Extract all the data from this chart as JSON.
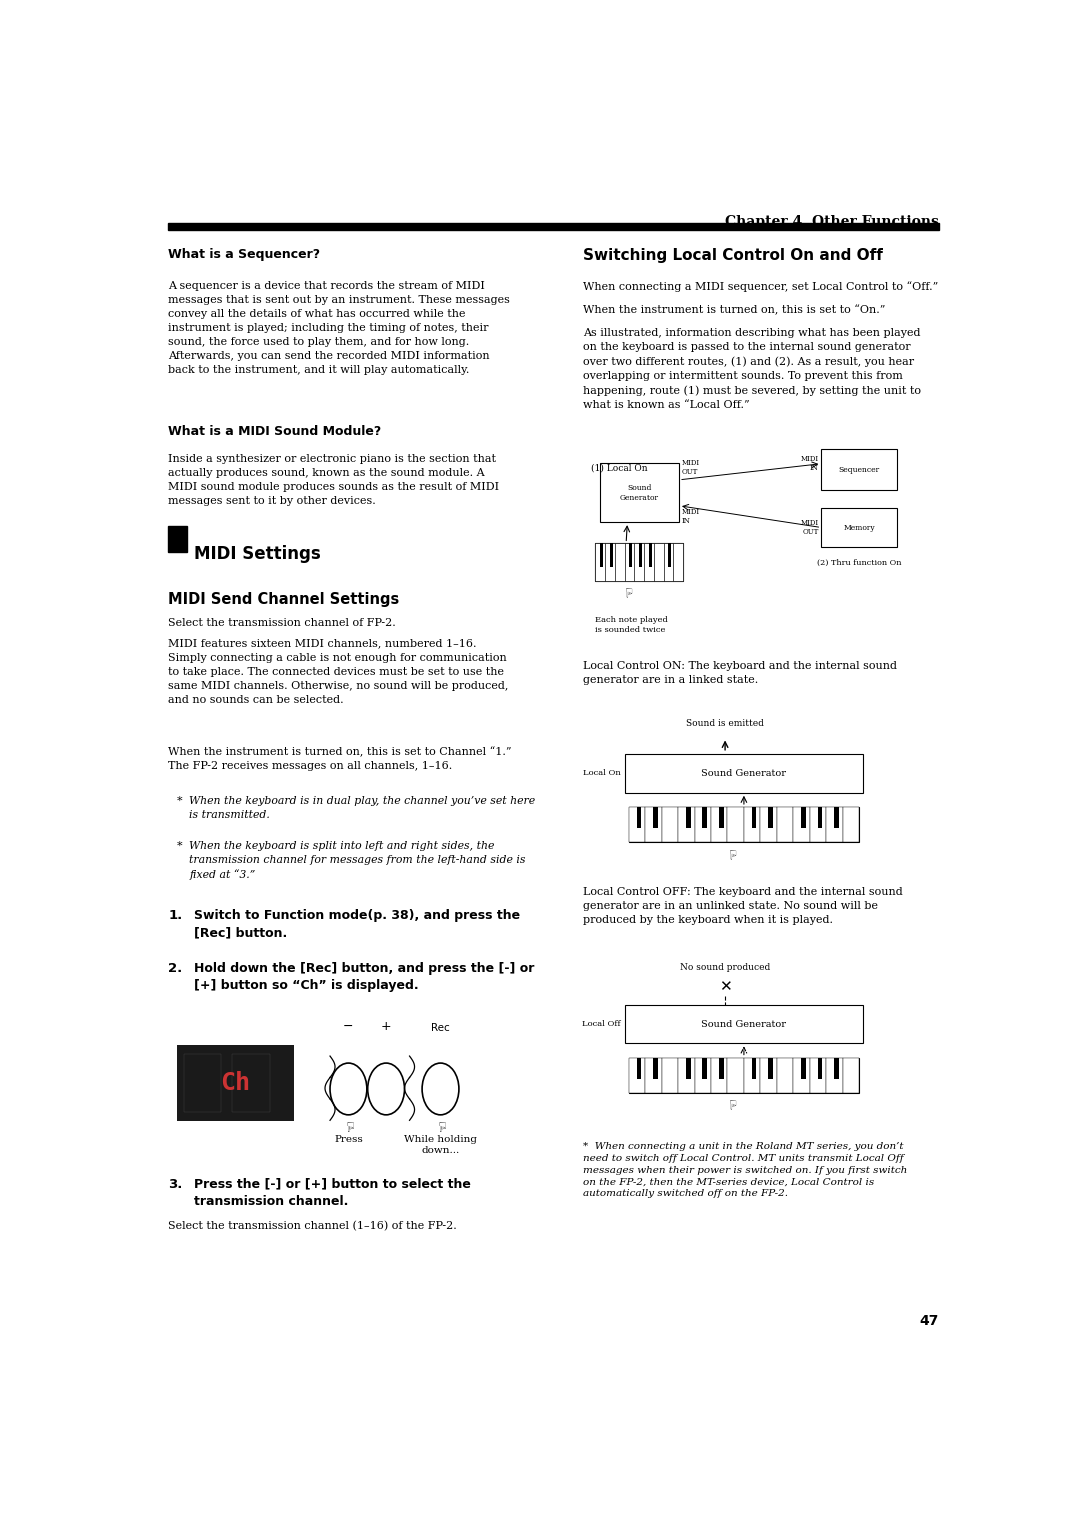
{
  "bg_color": "#ffffff",
  "chapter_header": "Chapter 4  Other Functions",
  "header_line_color": "#000000",
  "sections": {
    "what_is_sequencer_title": "What is a Sequencer?",
    "what_is_midi_title": "What is a MIDI Sound Module?",
    "midi_settings_title": "MIDI Settings",
    "midi_send_channel_title": "MIDI Send Channel Settings",
    "midi_send_channel_body1": "Select the transmission channel of FP-2.",
    "switching_title": "Switching Local Control On and Off",
    "page_number": "47"
  }
}
